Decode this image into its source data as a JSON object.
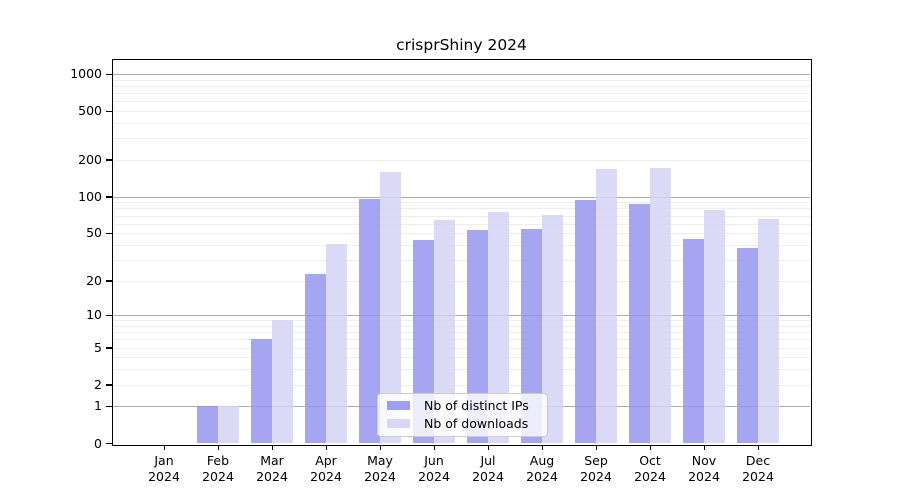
{
  "title": "crisprShiny 2024",
  "chart_data": {
    "type": "bar",
    "title": "crisprShiny 2024",
    "year": "2024",
    "categories": [
      "Jan",
      "Feb",
      "Mar",
      "Apr",
      "May",
      "Jun",
      "Jul",
      "Aug",
      "Sep",
      "Oct",
      "Nov",
      "Dec"
    ],
    "series": [
      {
        "name": "Nb of distinct IPs",
        "color": "#9595ef",
        "values": [
          0,
          1,
          6,
          23,
          95,
          44,
          53,
          54,
          94,
          87,
          45,
          38
        ]
      },
      {
        "name": "Nb of downloads",
        "color": "#d3d3f5",
        "values": [
          0,
          1,
          9,
          41,
          158,
          64,
          75,
          71,
          169,
          172,
          77,
          65
        ]
      }
    ],
    "y_ticks": [
      0,
      1,
      2,
      5,
      10,
      20,
      50,
      100,
      200,
      500,
      1000
    ],
    "ylim": [
      0,
      1000
    ],
    "scale": "log1p",
    "grid": "log-major-minor",
    "legend_position": "lower center",
    "background_color": "#ffffff",
    "major_grid_color": "#ababab",
    "minor_grid_color": "#ededed"
  }
}
